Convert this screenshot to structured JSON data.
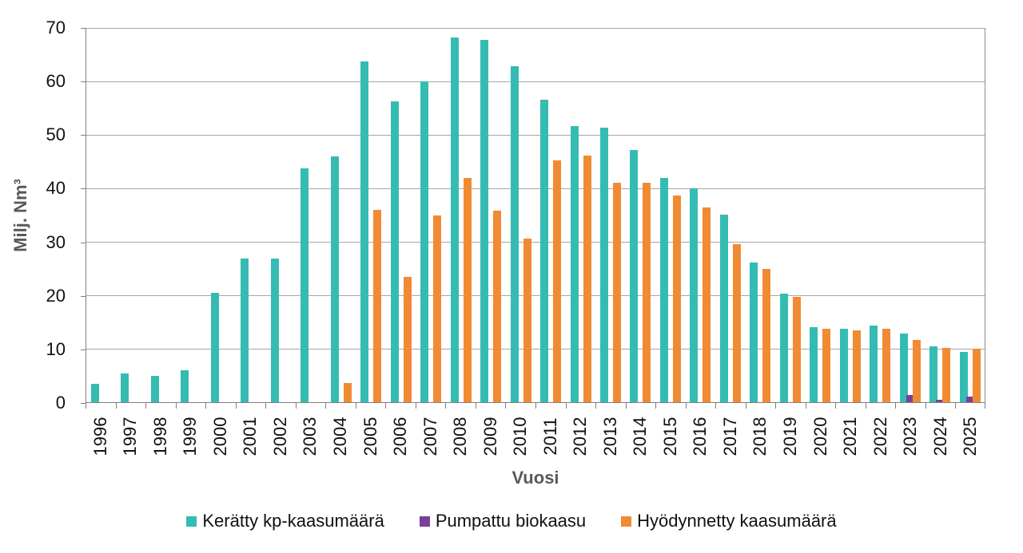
{
  "chart_data": {
    "type": "bar",
    "title": "",
    "xlabel": "Vuosi",
    "ylabel": "Milj. Nm³",
    "ylim": [
      0,
      70
    ],
    "yticks": [
      0,
      10,
      20,
      30,
      40,
      50,
      60,
      70
    ],
    "grid": true,
    "legend_position": "bottom",
    "categories": [
      "1996",
      "1997",
      "1998",
      "1999",
      "2000",
      "2001",
      "2002",
      "2003",
      "2004",
      "2005",
      "2006",
      "2007",
      "2008",
      "2009",
      "2010",
      "2011",
      "2012",
      "2013",
      "2014",
      "2015",
      "2016",
      "2017",
      "2018",
      "2019",
      "2020",
      "2021",
      "2022",
      "2023",
      "2024",
      "2025"
    ],
    "series": [
      {
        "name": "Kerätty kp-kaasumäärä",
        "color": "#35bcb2",
        "values": [
          3.5,
          5.4,
          5.0,
          5.9,
          20.5,
          26.9,
          26.9,
          43.7,
          45.9,
          63.8,
          56.2,
          60.0,
          68.2,
          67.8,
          62.9,
          56.5,
          51.6,
          51.3,
          47.2,
          41.9,
          40.0,
          35.1,
          26.1,
          20.3,
          14.1,
          13.8,
          14.4,
          12.8,
          10.5,
          9.4
        ]
      },
      {
        "name": "Pumpattu biokaasu",
        "color": "#7b3f98",
        "values": [
          0,
          0,
          0,
          0,
          0,
          0,
          0,
          0,
          0,
          0,
          0,
          0,
          0,
          0,
          0,
          0,
          0,
          0,
          0,
          0,
          0,
          0,
          0,
          0,
          0,
          0,
          0,
          1.4,
          0.5,
          1.0
        ]
      },
      {
        "name": "Hyödynnetty kaasumäärä",
        "color": "#f08b33",
        "values": [
          0,
          0,
          0,
          0,
          0,
          0,
          0,
          0,
          3.6,
          36.0,
          23.4,
          35.0,
          42.0,
          35.8,
          30.6,
          45.3,
          46.1,
          41.0,
          41.0,
          38.7,
          36.4,
          29.6,
          25.0,
          19.7,
          13.7,
          13.4,
          13.7,
          11.7,
          10.1,
          10.0
        ]
      }
    ]
  },
  "colors": {
    "background": "#ffffff",
    "gridline": "#a6a6a6",
    "axis_line": "#808080",
    "tick_label": "#111111",
    "axis_title": "#595959"
  }
}
